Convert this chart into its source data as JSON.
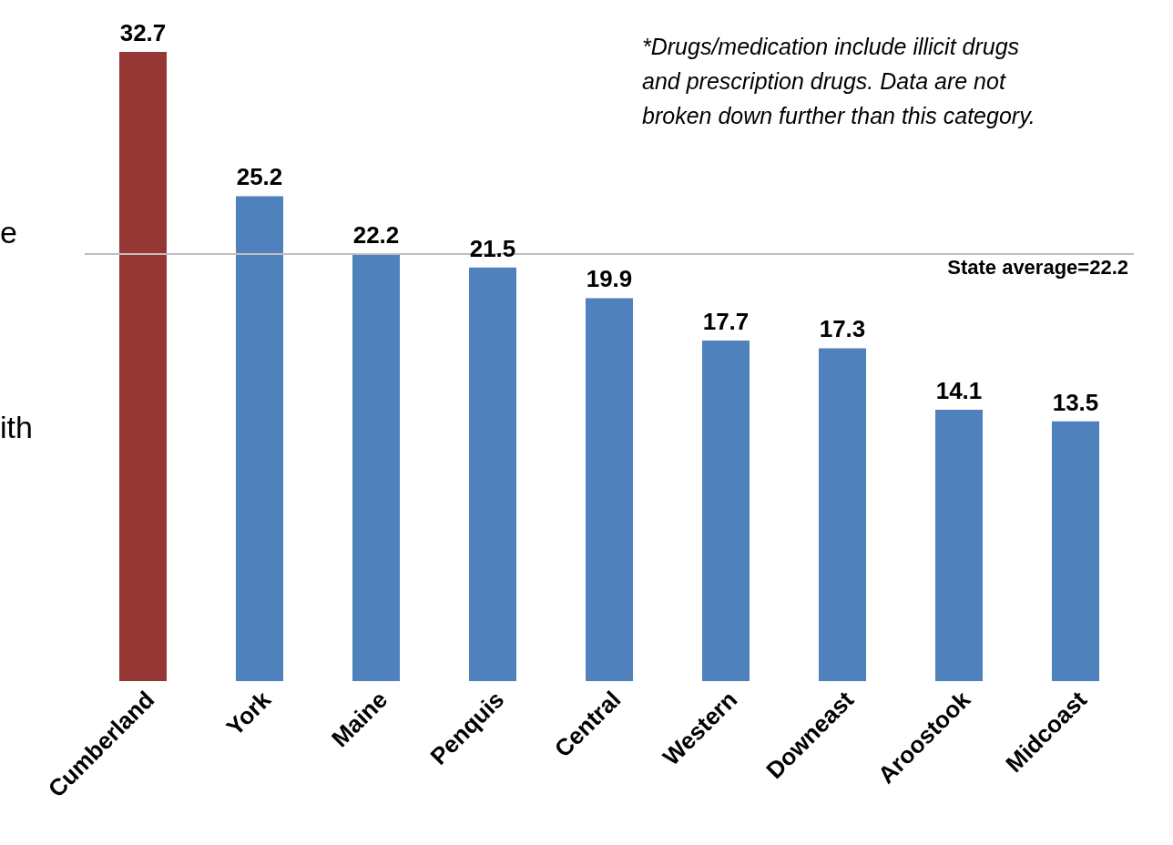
{
  "chart_data": {
    "type": "bar",
    "categories": [
      "Cumberland",
      "York",
      "Maine",
      "Penquis",
      "Central",
      "Western",
      "Downeast",
      "Aroostook",
      "Midcoast"
    ],
    "values": [
      32.7,
      25.2,
      22.2,
      21.5,
      19.9,
      17.7,
      17.3,
      14.1,
      13.5
    ],
    "colors": [
      "#953735",
      "#4f81bd",
      "#4f81bd",
      "#4f81bd",
      "#4f81bd",
      "#4f81bd",
      "#4f81bd",
      "#4f81bd",
      "#4f81bd"
    ],
    "data_labels": true,
    "grid": false,
    "legend": false,
    "ref_lines": [
      {
        "axis": "y",
        "value": 22.2,
        "label": "State average=22.2",
        "color": "#bfbfbf"
      }
    ],
    "annotations": [
      "*Drugs/medication include illicit drugs and prescription drugs. Data are not broken down further than this category.",
      "e",
      "ith"
    ]
  }
}
